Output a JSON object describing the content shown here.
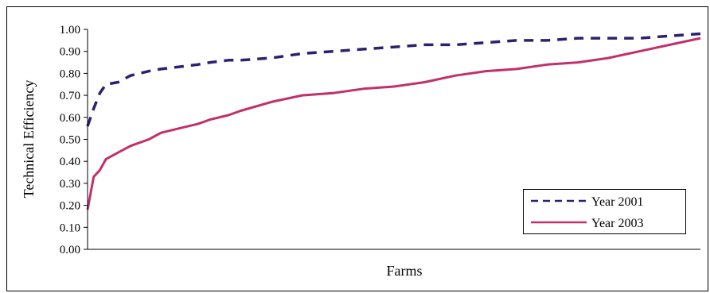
{
  "chart_data": {
    "type": "line",
    "title": "",
    "xlabel": "Farms",
    "ylabel": "Technical Efficiency",
    "ylim": [
      0,
      1.0
    ],
    "yticks": [
      "0.00",
      "0.10",
      "0.20",
      "0.30",
      "0.40",
      "0.50",
      "0.60",
      "0.70",
      "0.80",
      "0.90",
      "1.00"
    ],
    "grid": false,
    "legend_position": "bottom-right",
    "x": [
      0,
      0.01,
      0.02,
      0.03,
      0.05,
      0.07,
      0.1,
      0.12,
      0.15,
      0.18,
      0.2,
      0.23,
      0.25,
      0.3,
      0.35,
      0.4,
      0.45,
      0.5,
      0.55,
      0.6,
      0.65,
      0.7,
      0.75,
      0.8,
      0.85,
      0.9,
      0.95,
      1.0
    ],
    "series": [
      {
        "name": "Year 2001",
        "color": "#2e2070",
        "style": "dashed",
        "values": [
          0.56,
          0.64,
          0.71,
          0.75,
          0.76,
          0.79,
          0.81,
          0.82,
          0.83,
          0.84,
          0.85,
          0.86,
          0.86,
          0.87,
          0.89,
          0.9,
          0.91,
          0.92,
          0.93,
          0.93,
          0.94,
          0.95,
          0.95,
          0.96,
          0.96,
          0.96,
          0.97,
          0.98
        ]
      },
      {
        "name": "Year 2003",
        "color": "#c2306a",
        "style": "solid",
        "values": [
          0.18,
          0.33,
          0.36,
          0.41,
          0.44,
          0.47,
          0.5,
          0.53,
          0.55,
          0.57,
          0.59,
          0.61,
          0.63,
          0.67,
          0.7,
          0.71,
          0.73,
          0.74,
          0.76,
          0.79,
          0.81,
          0.82,
          0.84,
          0.85,
          0.87,
          0.9,
          0.93,
          0.96
        ]
      }
    ]
  }
}
